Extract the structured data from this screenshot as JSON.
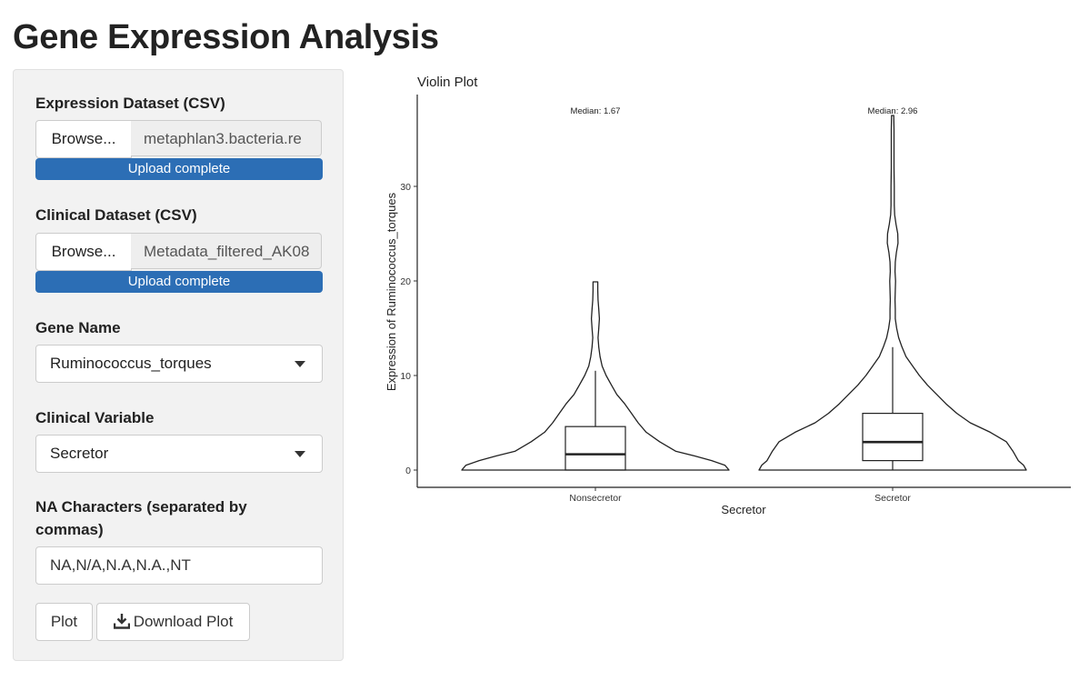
{
  "page": {
    "title": "Gene Expression Analysis"
  },
  "sidebar": {
    "expr_label": "Expression Dataset (CSV)",
    "expr_browse": "Browse...",
    "expr_file": "metaphlan3.bacteria.re",
    "expr_status": "Upload complete",
    "clin_label": "Clinical Dataset (CSV)",
    "clin_browse": "Browse...",
    "clin_file": "Metadata_filtered_AK08",
    "clin_status": "Upload complete",
    "gene_label": "Gene Name",
    "gene_value": "Ruminococcus_torques",
    "clinvar_label": "Clinical Variable",
    "clinvar_value": "Secretor",
    "na_label_line1": "NA Characters (separated by",
    "na_label_line2": "commas)",
    "na_value": "NA,N/A,N.A,N.A.,NT",
    "plot_button": "Plot",
    "download_button": "Download Plot",
    "download_icon": "download-icon",
    "progress_color": "#2c6eb5",
    "expr_upload_progress": 1.0,
    "clin_upload_progress": 1.0
  },
  "chart_data": {
    "type": "violin",
    "title": "Violin Plot",
    "xlabel": "Secretor",
    "ylabel": "Expression of Ruminococcus_torques",
    "categories": [
      "Nonsecretor",
      "Secretor"
    ],
    "yticks": [
      0,
      10,
      20,
      30
    ],
    "ylim": [
      -1.9,
      39.6
    ],
    "annotations": [
      "Median: 1.67",
      "Median: 2.96"
    ],
    "boxplots": [
      {
        "category": "Nonsecretor",
        "min": 0,
        "q1": 0,
        "median": 1.67,
        "q3": 4.6,
        "whisker_high": 10.5
      },
      {
        "category": "Secretor",
        "min": 0,
        "q1": 1.0,
        "median": 2.96,
        "q3": 6.0,
        "whisker_high": 13.0
      }
    ],
    "violins": [
      {
        "category": "Nonsecretor",
        "max": 19.9,
        "profile": [
          [
            0,
            1.0
          ],
          [
            0.5,
            0.97
          ],
          [
            1,
            0.87
          ],
          [
            1.5,
            0.74
          ],
          [
            2,
            0.6
          ],
          [
            3,
            0.48
          ],
          [
            4,
            0.38
          ],
          [
            5,
            0.32
          ],
          [
            6,
            0.27
          ],
          [
            7,
            0.22
          ],
          [
            8,
            0.16
          ],
          [
            9,
            0.12
          ],
          [
            10,
            0.08
          ],
          [
            11,
            0.05
          ],
          [
            12,
            0.035
          ],
          [
            13,
            0.025
          ],
          [
            14,
            0.02
          ],
          [
            15,
            0.025
          ],
          [
            16,
            0.03
          ],
          [
            17,
            0.025
          ],
          [
            18,
            0.02
          ],
          [
            19,
            0.018
          ],
          [
            19.9,
            0.018
          ]
        ]
      },
      {
        "category": "Secretor",
        "max": 37.5,
        "profile": [
          [
            0,
            1.0
          ],
          [
            0.5,
            0.98
          ],
          [
            1,
            0.94
          ],
          [
            2,
            0.9
          ],
          [
            3,
            0.85
          ],
          [
            4,
            0.73
          ],
          [
            5,
            0.58
          ],
          [
            6,
            0.48
          ],
          [
            7,
            0.4
          ],
          [
            8,
            0.33
          ],
          [
            9,
            0.26
          ],
          [
            10,
            0.2
          ],
          [
            11,
            0.15
          ],
          [
            12,
            0.1
          ],
          [
            13,
            0.07
          ],
          [
            14,
            0.045
          ],
          [
            15,
            0.03
          ],
          [
            16,
            0.02
          ],
          [
            17,
            0.02
          ],
          [
            18,
            0.018
          ],
          [
            19,
            0.02
          ],
          [
            20,
            0.022
          ],
          [
            21,
            0.018
          ],
          [
            22,
            0.02
          ],
          [
            23,
            0.028
          ],
          [
            24,
            0.04
          ],
          [
            25,
            0.038
          ],
          [
            26,
            0.025
          ],
          [
            27,
            0.015
          ],
          [
            28,
            0.012
          ],
          [
            30,
            0.012
          ],
          [
            32,
            0.01
          ],
          [
            34,
            0.01
          ],
          [
            36,
            0.01
          ],
          [
            37.5,
            0.008
          ]
        ]
      }
    ]
  }
}
